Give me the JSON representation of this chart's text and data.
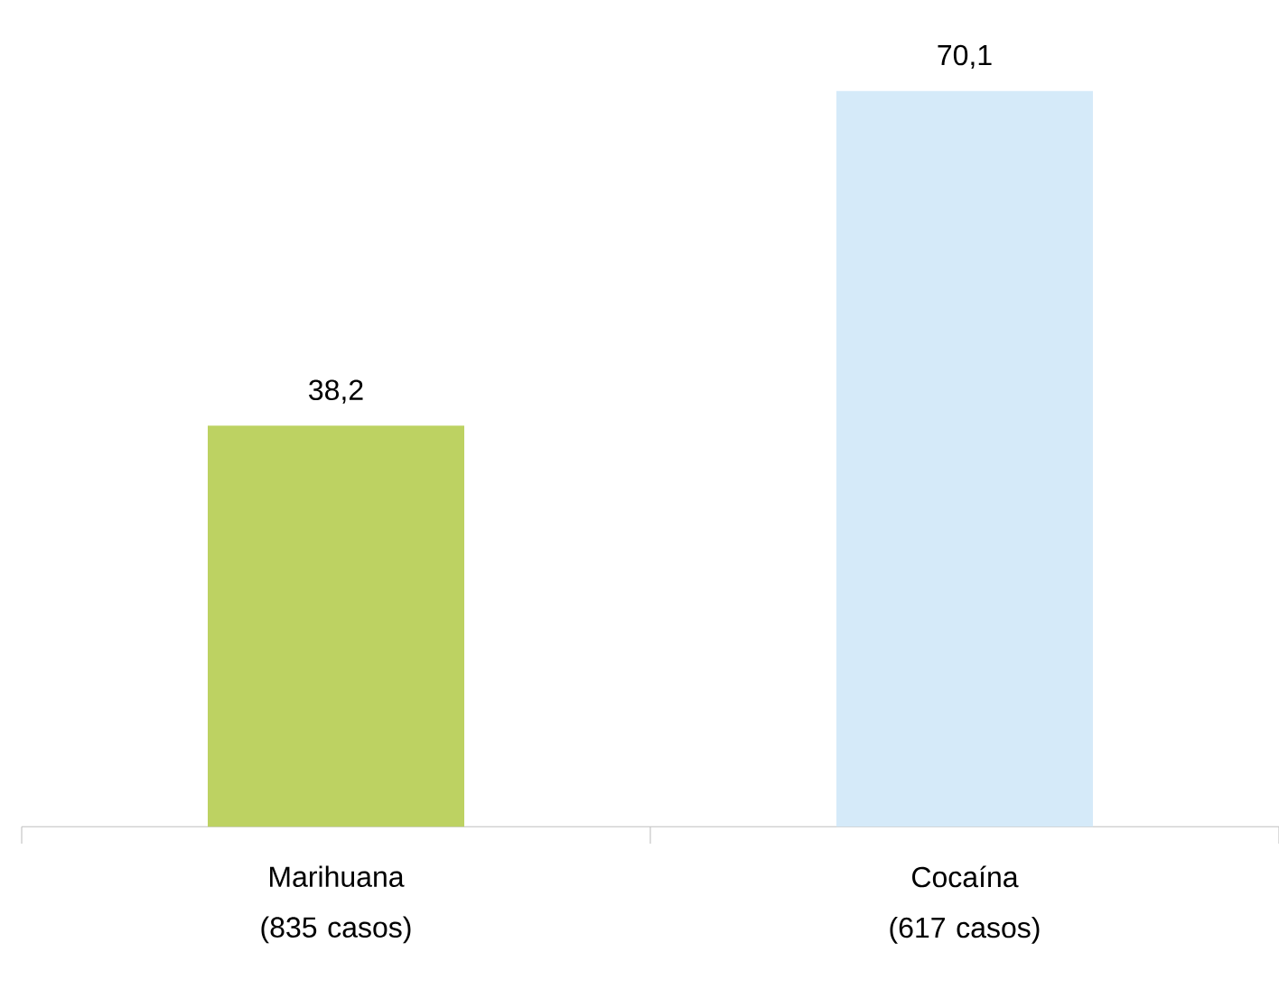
{
  "chart_data": {
    "type": "bar",
    "categories": [
      "Marihuana (835 casos)",
      "Cocaína (617 casos)"
    ],
    "values": [
      38.2,
      70.1
    ],
    "colors": [
      "#bdd262",
      "#d5eaf9"
    ],
    "value_labels": [
      "38,2",
      "70,1"
    ],
    "grid": false
  }
}
